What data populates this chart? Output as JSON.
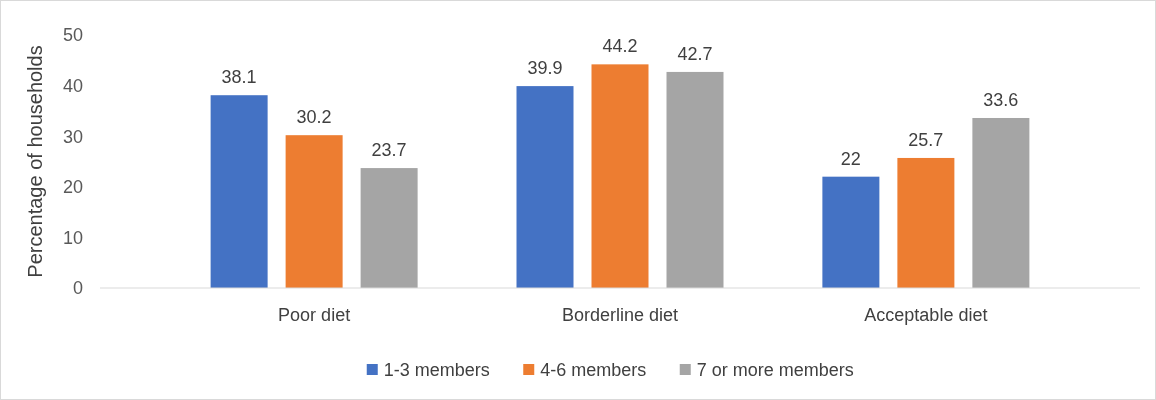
{
  "chart_data": {
    "type": "bar",
    "ylabel": "Percentage of households",
    "categories": [
      "Poor diet",
      "Borderline diet",
      "Acceptable diet"
    ],
    "series": [
      {
        "name": "1-3 members",
        "color": "#4472c4",
        "values": [
          38.1,
          39.9,
          22
        ]
      },
      {
        "name": "4-6 members",
        "color": "#ed7d31",
        "values": [
          30.2,
          44.2,
          25.7
        ]
      },
      {
        "name": "7 or more members",
        "color": "#a5a5a5",
        "values": [
          23.7,
          42.7,
          33.6
        ]
      }
    ],
    "ylim": [
      0,
      50
    ],
    "yticks": [
      0,
      10,
      20,
      30,
      40,
      50
    ],
    "data_labels": true,
    "legend": "bottom"
  }
}
